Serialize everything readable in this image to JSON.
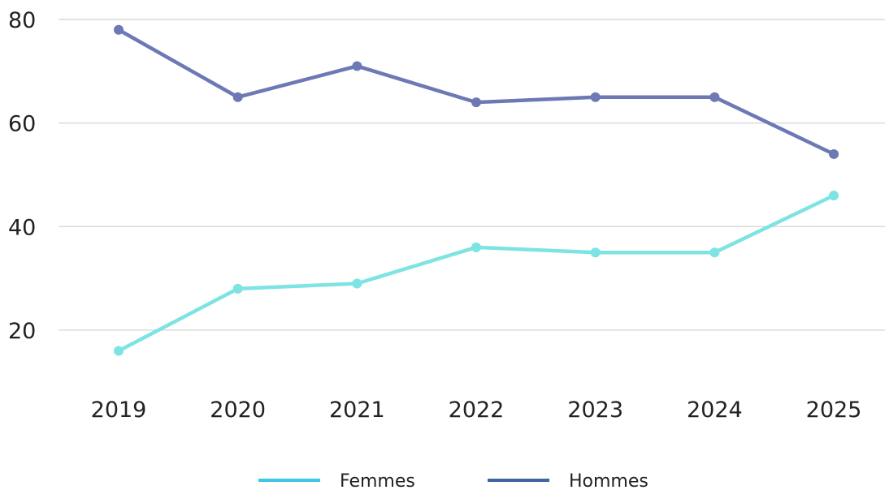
{
  "chart_data": {
    "type": "line",
    "title": "",
    "xlabel": "",
    "ylabel": "",
    "categories": [
      "2019",
      "2020",
      "2021",
      "2022",
      "2023",
      "2024",
      "2025"
    ],
    "ylim": [
      12,
      80
    ],
    "yticks": [
      20,
      40,
      60,
      80
    ],
    "grid": true,
    "legend_position": "bottom",
    "series": [
      {
        "name": "Femmes",
        "color": "#7de3e3",
        "legend_color": "#3ec6e8",
        "values": [
          16,
          28,
          29,
          36,
          35,
          35,
          46
        ]
      },
      {
        "name": "Hommes",
        "color": "#6c79b5",
        "legend_color": "#3f65a0",
        "values": [
          78,
          65,
          71,
          64,
          65,
          65,
          54
        ]
      }
    ]
  }
}
